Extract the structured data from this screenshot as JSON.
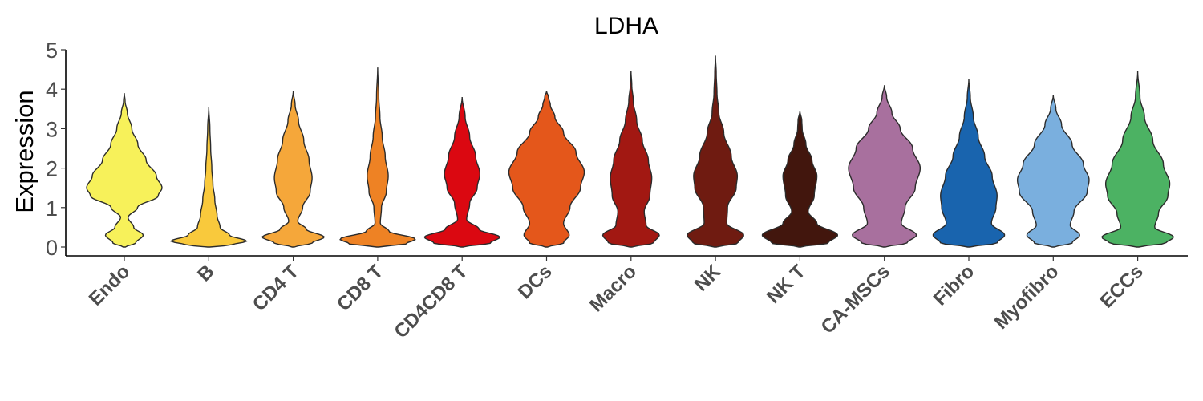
{
  "chart_data": {
    "type": "violin",
    "title": "LDHA",
    "xlabel": "",
    "ylabel": "Expression",
    "ylim": [
      -0.2,
      5
    ],
    "yticks": [
      0,
      1,
      2,
      3,
      4,
      5
    ],
    "grid": false,
    "legend": "none",
    "categories": [
      "Endo",
      "B",
      "CD4 T",
      "CD8 T",
      "CD4CD8 T",
      "DCs",
      "Macro",
      "NK",
      "NK T",
      "CA-MSCs",
      "Fibro",
      "Myofibro",
      "ECCs"
    ],
    "series": [
      {
        "category": "Endo",
        "color": "#F7F15A",
        "ymax": 3.9,
        "profile": [
          [
            0,
            0.03
          ],
          [
            0.1,
            0.3
          ],
          [
            0.3,
            0.5
          ],
          [
            0.5,
            0.25
          ],
          [
            0.75,
            0.1
          ],
          [
            1,
            0.35
          ],
          [
            1.3,
            0.9
          ],
          [
            1.5,
            1.0
          ],
          [
            1.8,
            0.85
          ],
          [
            2.2,
            0.58
          ],
          [
            2.6,
            0.36
          ],
          [
            3.0,
            0.2
          ],
          [
            3.4,
            0.08
          ],
          [
            3.7,
            0.02
          ],
          [
            3.9,
            0
          ]
        ]
      },
      {
        "category": "B",
        "color": "#F9C93C",
        "ymax": 3.55,
        "profile": [
          [
            0,
            0.03
          ],
          [
            0.05,
            0.6
          ],
          [
            0.15,
            1.0
          ],
          [
            0.3,
            0.55
          ],
          [
            0.5,
            0.3
          ],
          [
            0.8,
            0.22
          ],
          [
            1.2,
            0.16
          ],
          [
            1.6,
            0.11
          ],
          [
            2.0,
            0.08
          ],
          [
            2.5,
            0.05
          ],
          [
            3.0,
            0.03
          ],
          [
            3.55,
            0
          ]
        ]
      },
      {
        "category": "CD4 T",
        "color": "#F5A73A",
        "ymax": 3.95,
        "profile": [
          [
            0,
            0.03
          ],
          [
            0.1,
            0.5
          ],
          [
            0.25,
            0.82
          ],
          [
            0.45,
            0.35
          ],
          [
            0.65,
            0.12
          ],
          [
            1.0,
            0.25
          ],
          [
            1.4,
            0.45
          ],
          [
            1.75,
            0.5
          ],
          [
            2.2,
            0.42
          ],
          [
            2.7,
            0.28
          ],
          [
            3.2,
            0.14
          ],
          [
            3.6,
            0.05
          ],
          [
            3.95,
            0
          ]
        ]
      },
      {
        "category": "CD8 T",
        "color": "#EE8224",
        "ymax": 4.55,
        "profile": [
          [
            0,
            0.03
          ],
          [
            0.08,
            0.75
          ],
          [
            0.2,
            1.0
          ],
          [
            0.4,
            0.3
          ],
          [
            0.6,
            0.07
          ],
          [
            1.0,
            0.1
          ],
          [
            1.4,
            0.23
          ],
          [
            1.8,
            0.28
          ],
          [
            2.3,
            0.2
          ],
          [
            2.8,
            0.12
          ],
          [
            3.3,
            0.06
          ],
          [
            3.8,
            0.03
          ],
          [
            4.55,
            0
          ]
        ]
      },
      {
        "category": "CD4CD8 T",
        "color": "#DB0811",
        "ymax": 3.8,
        "profile": [
          [
            0,
            0.03
          ],
          [
            0.1,
            0.75
          ],
          [
            0.25,
            1.0
          ],
          [
            0.45,
            0.45
          ],
          [
            0.7,
            0.12
          ],
          [
            1.1,
            0.2
          ],
          [
            1.5,
            0.4
          ],
          [
            1.85,
            0.47
          ],
          [
            2.3,
            0.36
          ],
          [
            2.8,
            0.2
          ],
          [
            3.3,
            0.08
          ],
          [
            3.8,
            0
          ]
        ]
      },
      {
        "category": "DCs",
        "color": "#E4571B",
        "ymax": 3.95,
        "profile": [
          [
            0,
            0.03
          ],
          [
            0.1,
            0.45
          ],
          [
            0.3,
            0.6
          ],
          [
            0.6,
            0.45
          ],
          [
            1.0,
            0.62
          ],
          [
            1.5,
            0.9
          ],
          [
            1.9,
            1.0
          ],
          [
            2.4,
            0.78
          ],
          [
            2.9,
            0.45
          ],
          [
            3.3,
            0.22
          ],
          [
            3.6,
            0.1
          ],
          [
            3.8,
            0.05
          ],
          [
            3.95,
            0
          ]
        ]
      },
      {
        "category": "Macro",
        "color": "#A21812",
        "ymax": 4.45,
        "profile": [
          [
            0,
            0.03
          ],
          [
            0.1,
            0.6
          ],
          [
            0.3,
            0.75
          ],
          [
            0.55,
            0.4
          ],
          [
            0.9,
            0.35
          ],
          [
            1.3,
            0.5
          ],
          [
            1.75,
            0.55
          ],
          [
            2.2,
            0.46
          ],
          [
            2.7,
            0.3
          ],
          [
            3.2,
            0.15
          ],
          [
            3.7,
            0.06
          ],
          [
            4.1,
            0.02
          ],
          [
            4.45,
            0
          ]
        ]
      },
      {
        "category": "NK",
        "color": "#6F1B11",
        "ymax": 4.85,
        "profile": [
          [
            0,
            0.03
          ],
          [
            0.1,
            0.6
          ],
          [
            0.3,
            0.75
          ],
          [
            0.6,
            0.3
          ],
          [
            1.0,
            0.32
          ],
          [
            1.5,
            0.55
          ],
          [
            1.8,
            0.58
          ],
          [
            2.3,
            0.42
          ],
          [
            2.9,
            0.22
          ],
          [
            3.4,
            0.09
          ],
          [
            3.9,
            0.04
          ],
          [
            4.4,
            0.02
          ],
          [
            4.85,
            0
          ]
        ]
      },
      {
        "category": "NK T",
        "color": "#42160D",
        "ymax": 3.45,
        "profile": [
          [
            0,
            0.03
          ],
          [
            0.1,
            0.75
          ],
          [
            0.3,
            1.0
          ],
          [
            0.6,
            0.45
          ],
          [
            0.9,
            0.22
          ],
          [
            1.3,
            0.38
          ],
          [
            1.8,
            0.45
          ],
          [
            2.2,
            0.32
          ],
          [
            2.6,
            0.16
          ],
          [
            3.0,
            0.06
          ],
          [
            3.2,
            0.05
          ],
          [
            3.45,
            0
          ]
        ]
      },
      {
        "category": "CA-MSCs",
        "color": "#A8709E",
        "ymax": 4.1,
        "profile": [
          [
            0,
            0.03
          ],
          [
            0.1,
            0.6
          ],
          [
            0.3,
            0.85
          ],
          [
            0.6,
            0.45
          ],
          [
            1.0,
            0.55
          ],
          [
            1.5,
            0.82
          ],
          [
            2.0,
            0.95
          ],
          [
            2.5,
            0.75
          ],
          [
            3.0,
            0.42
          ],
          [
            3.4,
            0.2
          ],
          [
            3.8,
            0.06
          ],
          [
            4.1,
            0
          ]
        ]
      },
      {
        "category": "Fibro",
        "color": "#1964AE",
        "ymax": 4.25,
        "profile": [
          [
            0,
            0.03
          ],
          [
            0.1,
            0.75
          ],
          [
            0.3,
            0.95
          ],
          [
            0.6,
            0.6
          ],
          [
            1.0,
            0.72
          ],
          [
            1.3,
            0.75
          ],
          [
            1.8,
            0.62
          ],
          [
            2.3,
            0.42
          ],
          [
            2.8,
            0.25
          ],
          [
            3.3,
            0.12
          ],
          [
            3.8,
            0.04
          ],
          [
            4.25,
            0
          ]
        ]
      },
      {
        "category": "Myofibro",
        "color": "#7AAFDE",
        "ymax": 3.85,
        "profile": [
          [
            0,
            0.03
          ],
          [
            0.1,
            0.5
          ],
          [
            0.3,
            0.7
          ],
          [
            0.55,
            0.45
          ],
          [
            0.9,
            0.55
          ],
          [
            1.4,
            0.9
          ],
          [
            1.7,
            0.95
          ],
          [
            2.1,
            0.8
          ],
          [
            2.6,
            0.5
          ],
          [
            3.1,
            0.22
          ],
          [
            3.5,
            0.07
          ],
          [
            3.85,
            0
          ]
        ]
      },
      {
        "category": "ECCs",
        "color": "#4CB263",
        "ymax": 4.45,
        "profile": [
          [
            0,
            0.03
          ],
          [
            0.1,
            0.75
          ],
          [
            0.25,
            0.95
          ],
          [
            0.5,
            0.45
          ],
          [
            0.85,
            0.55
          ],
          [
            1.3,
            0.8
          ],
          [
            1.6,
            0.85
          ],
          [
            2.1,
            0.68
          ],
          [
            2.7,
            0.4
          ],
          [
            3.3,
            0.18
          ],
          [
            3.8,
            0.06
          ],
          [
            4.45,
            0
          ]
        ]
      }
    ]
  }
}
